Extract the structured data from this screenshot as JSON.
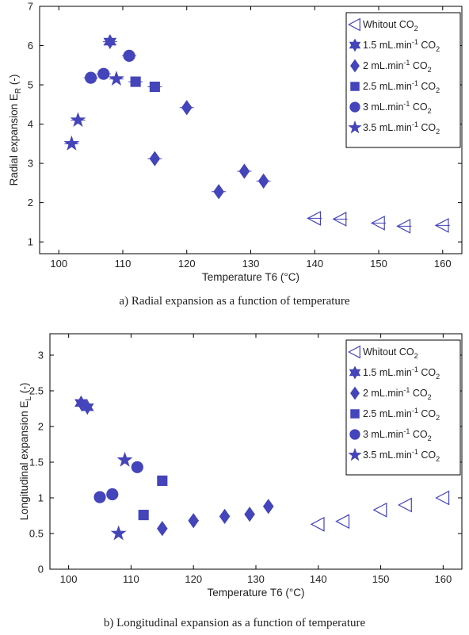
{
  "colors": {
    "marker": "#4444bb",
    "axis": "#000000",
    "background": "#ffffff"
  },
  "chart_data": [
    {
      "type": "scatter",
      "panel": "a",
      "caption": "a) Radial expansion as a function of temperature",
      "xlabel": "Temperature T6 (°C)",
      "ylabel": "Radial expansion E",
      "ylabel_sub": "R",
      "ylabel_suffix": " (-)",
      "xlim": [
        97,
        163
      ],
      "ylim": [
        0.7,
        7
      ],
      "xticks": [
        100,
        110,
        120,
        130,
        140,
        150,
        160
      ],
      "yticks": [
        1,
        2,
        3,
        4,
        5,
        6,
        7
      ],
      "grid": false,
      "legend_position": "top-right",
      "series": [
        {
          "marker": "triangle-left-open",
          "legend": [
            "Whitout CO",
            "2",
            "",
            ""
          ],
          "points": [
            [
              140,
              1.6
            ],
            [
              144,
              1.58
            ],
            [
              150,
              1.48
            ],
            [
              154,
              1.4
            ],
            [
              160,
              1.42
            ]
          ]
        },
        {
          "marker": "hexagram",
          "legend": [
            "1.5 mL.min",
            "-1",
            " CO",
            "2"
          ],
          "points": [
            [
              108,
              6.1
            ]
          ]
        },
        {
          "marker": "diamond",
          "legend": [
            "2 mL.min",
            "-1",
            " CO",
            "2"
          ],
          "points": [
            [
              115,
              3.12
            ],
            [
              120,
              4.42
            ],
            [
              125,
              2.28
            ],
            [
              129,
              2.8
            ],
            [
              132,
              2.55
            ]
          ]
        },
        {
          "marker": "square",
          "legend": [
            "2.5 mL.min",
            "-1",
            " CO",
            "2"
          ],
          "points": [
            [
              112,
              5.08
            ],
            [
              115,
              4.95
            ]
          ]
        },
        {
          "marker": "circle",
          "legend": [
            "3 mL.min",
            "-1",
            " CO",
            "2"
          ],
          "points": [
            [
              105,
              5.18
            ],
            [
              107,
              5.28
            ],
            [
              111,
              5.74
            ]
          ]
        },
        {
          "marker": "pentagram",
          "legend": [
            "3.5 mL.min",
            "-1",
            " CO",
            "2"
          ],
          "points": [
            [
              102,
              3.5
            ],
            [
              103,
              4.1
            ],
            [
              109,
              5.15
            ]
          ]
        }
      ]
    },
    {
      "type": "scatter",
      "panel": "b",
      "caption": "b) Longitudinal expansion as a function of temperature",
      "xlabel": "Temperature T6 (°C)",
      "ylabel": "Longitudinal expansion E",
      "ylabel_sub": "L",
      "ylabel_suffix": " (-)",
      "xlim": [
        97,
        163
      ],
      "ylim": [
        0,
        3.3
      ],
      "xticks": [
        100,
        110,
        120,
        130,
        140,
        150,
        160
      ],
      "yticks": [
        0,
        0.5,
        1,
        1.5,
        2,
        2.5,
        3
      ],
      "grid": false,
      "legend_position": "top-right",
      "series": [
        {
          "marker": "triangle-left-open",
          "legend": [
            "Whitout CO",
            "2",
            "",
            ""
          ],
          "points": [
            [
              140,
              0.63
            ],
            [
              144,
              0.67
            ],
            [
              150,
              0.83
            ],
            [
              154,
              0.9
            ],
            [
              160,
              1.0
            ]
          ]
        },
        {
          "marker": "hexagram",
          "legend": [
            "1.5 mL.min",
            "-1",
            " CO",
            "2"
          ],
          "points": [
            [
              102,
              2.33
            ],
            [
              103,
              2.27
            ]
          ]
        },
        {
          "marker": "diamond",
          "legend": [
            "2 mL.min",
            "-1",
            " CO",
            "2"
          ],
          "points": [
            [
              115,
              0.57
            ],
            [
              120,
              0.68
            ],
            [
              125,
              0.74
            ],
            [
              129,
              0.77
            ],
            [
              132,
              0.88
            ]
          ]
        },
        {
          "marker": "square",
          "legend": [
            "2.5 mL.min",
            "-1",
            " CO",
            "2"
          ],
          "points": [
            [
              112,
              0.76
            ],
            [
              115,
              1.24
            ]
          ]
        },
        {
          "marker": "circle",
          "legend": [
            "3 mL.min",
            "-1",
            " CO",
            "2"
          ],
          "points": [
            [
              105,
              1.01
            ],
            [
              107,
              1.05
            ],
            [
              111,
              1.43
            ]
          ]
        },
        {
          "marker": "pentagram",
          "legend": [
            "3.5 mL.min",
            "-1",
            " CO",
            "2"
          ],
          "points": [
            [
              108,
              0.5
            ],
            [
              109,
              1.53
            ]
          ]
        }
      ]
    }
  ]
}
